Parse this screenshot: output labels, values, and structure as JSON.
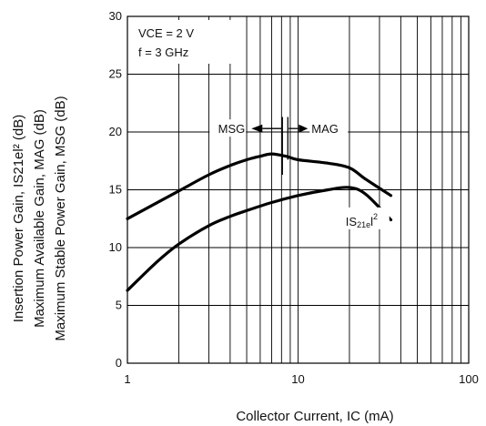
{
  "chart_data": {
    "type": "line",
    "x_scale": "log",
    "xlim": [
      1,
      100
    ],
    "ylim": [
      0,
      30
    ],
    "x_ticks": [
      "1",
      "10",
      "100"
    ],
    "y_ticks": [
      "0",
      "5",
      "10",
      "15",
      "20",
      "25",
      "30"
    ],
    "grid": true,
    "xlabel": "Collector Current, IC (mA)",
    "ylabel_lines": [
      "Insertion Power Gain, IS21el² (dB)",
      "Maximum Available Gain, MAG (dB)",
      "Maximum Stable Power Gain, MSG (dB)"
    ],
    "conditions": [
      "VCE = 2 V",
      "f = 3 GHz"
    ],
    "annotations": {
      "msg": "MSG",
      "mag": "MAG",
      "s21": "IS21el2",
      "boundary_x": 8.5
    },
    "series": [
      {
        "name": "MSG / MAG",
        "x": [
          1,
          2,
          3,
          4,
          5,
          6,
          7,
          8.5,
          10,
          15,
          20,
          25,
          35
        ],
        "y": [
          12.5,
          14.9,
          16.3,
          17.1,
          17.6,
          17.9,
          18.1,
          17.9,
          17.6,
          17.3,
          16.9,
          15.9,
          14.5
        ]
      },
      {
        "name": "IS21el2",
        "x": [
          1,
          1.5,
          2,
          3,
          4,
          5,
          7,
          10,
          15,
          20,
          25,
          35
        ],
        "y": [
          6.3,
          8.8,
          10.3,
          11.9,
          12.7,
          13.2,
          13.9,
          14.5,
          15.0,
          15.2,
          14.6,
          12.4
        ]
      }
    ]
  }
}
